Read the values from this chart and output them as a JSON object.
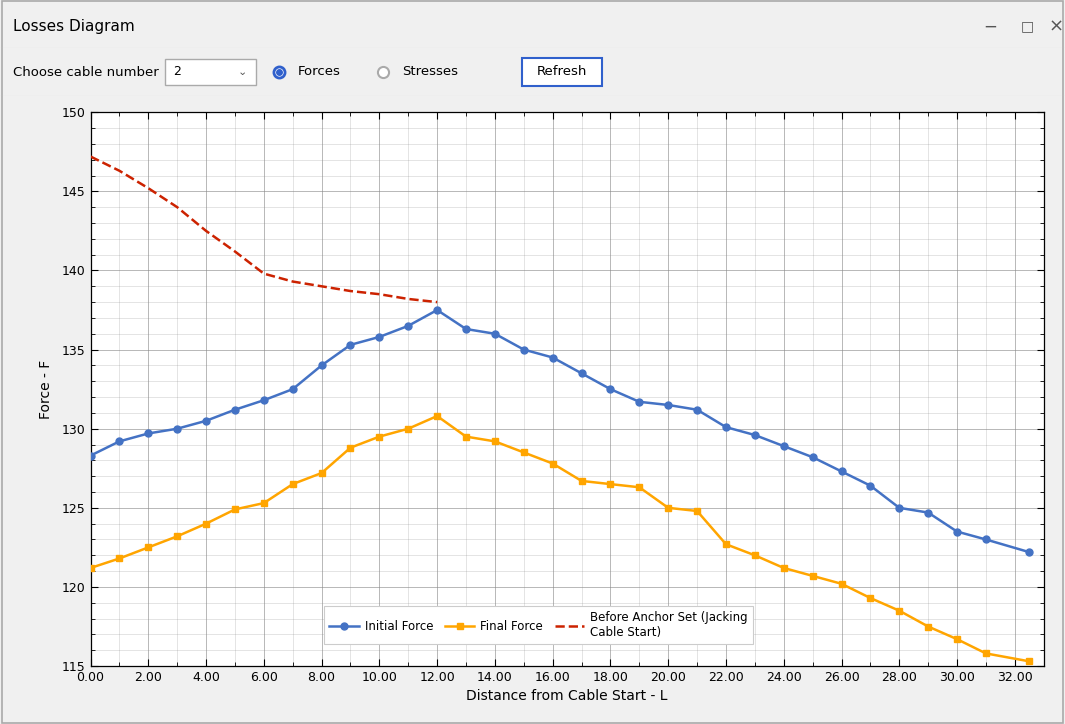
{
  "xlabel": "Distance from Cable Start - L",
  "ylabel": "Force - F",
  "xlim": [
    0.0,
    33.0
  ],
  "ylim": [
    115,
    150
  ],
  "xticks": [
    0,
    2,
    4,
    6,
    8,
    10,
    12,
    14,
    16,
    18,
    20,
    22,
    24,
    26,
    28,
    30,
    32
  ],
  "yticks": [
    115,
    120,
    125,
    130,
    135,
    140,
    145,
    150
  ],
  "initial_force_x": [
    0.0,
    1.0,
    2.0,
    3.0,
    4.0,
    5.0,
    6.0,
    7.0,
    8.0,
    9.0,
    10.0,
    11.0,
    12.0,
    13.0,
    14.0,
    15.0,
    16.0,
    17.0,
    18.0,
    19.0,
    20.0,
    21.0,
    22.0,
    23.0,
    24.0,
    25.0,
    26.0,
    27.0,
    28.0,
    29.0,
    30.0,
    31.0,
    32.5
  ],
  "initial_force_y": [
    128.3,
    129.2,
    129.7,
    130.0,
    130.5,
    131.2,
    131.8,
    132.5,
    134.0,
    135.3,
    135.8,
    136.5,
    137.5,
    136.3,
    136.0,
    135.0,
    134.5,
    133.5,
    132.5,
    131.7,
    131.5,
    131.2,
    130.1,
    129.6,
    128.9,
    128.2,
    127.3,
    126.4,
    125.0,
    124.7,
    123.5,
    123.0,
    122.2
  ],
  "final_force_x": [
    0.0,
    1.0,
    2.0,
    3.0,
    4.0,
    5.0,
    6.0,
    7.0,
    8.0,
    9.0,
    10.0,
    11.0,
    12.0,
    13.0,
    14.0,
    15.0,
    16.0,
    17.0,
    18.0,
    19.0,
    20.0,
    21.0,
    22.0,
    23.0,
    24.0,
    25.0,
    26.0,
    27.0,
    28.0,
    29.0,
    30.0,
    31.0,
    32.5
  ],
  "final_force_y": [
    121.2,
    121.8,
    122.5,
    123.2,
    124.0,
    124.9,
    125.3,
    126.5,
    127.2,
    128.8,
    129.5,
    130.0,
    130.8,
    129.5,
    129.2,
    128.5,
    127.8,
    126.7,
    126.5,
    126.3,
    125.0,
    124.8,
    122.7,
    122.0,
    121.2,
    120.7,
    120.2,
    119.3,
    118.5,
    117.5,
    116.7,
    115.8,
    115.3
  ],
  "anchor_x": [
    0.0,
    1.0,
    2.0,
    3.0,
    4.0,
    5.0,
    6.0,
    7.0,
    8.0,
    9.0,
    10.0,
    11.0,
    12.0
  ],
  "anchor_y": [
    147.2,
    146.3,
    145.2,
    144.0,
    142.5,
    141.2,
    139.8,
    139.3,
    139.0,
    138.7,
    138.5,
    138.2,
    138.0
  ],
  "initial_force_color": "#4472C4",
  "final_force_color": "#FFA500",
  "anchor_color": "#CC2200",
  "bg_window": "#F0F0F0",
  "bg_chart": "#FFFFFF",
  "bg_titlebar": "#F0F0F0",
  "bg_toolbar": "#F0F0F0",
  "grid_color": "#555555",
  "title_text": "Losses Diagram",
  "window_btn_minimize": "−",
  "window_btn_maximize": "□",
  "window_btn_close": "×",
  "toolbar_label": "Choose cable number",
  "toolbar_dropdown": "2",
  "toolbar_radio1": "Forces",
  "toolbar_radio2": "Stresses",
  "toolbar_button": "Refresh",
  "legend_labels": [
    "Initial Force",
    "Final Force",
    "Before Anchor Set (Jacking\nCable Start)"
  ]
}
